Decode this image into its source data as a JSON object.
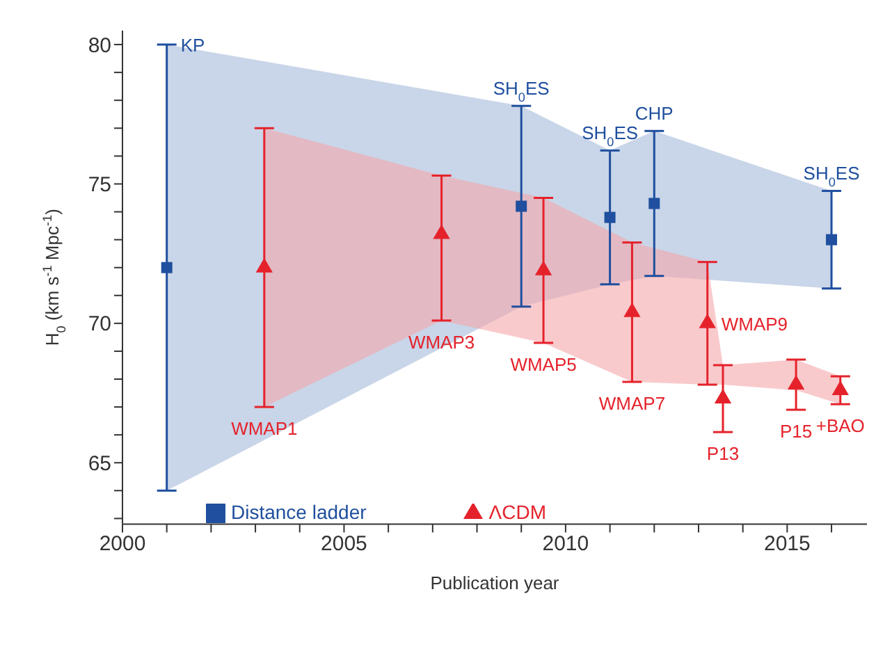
{
  "chart_data": {
    "type": "scatter",
    "xlabel": "Publication year",
    "ylabel": "H$_{0}$ (km s$^{-1}$ Mpc$^{-1}$)",
    "xlim": [
      2000,
      2016.8
    ],
    "ylim": [
      62.8,
      80.5
    ],
    "xticks": [
      2000,
      {
        "value": 2001,
        "label": null
      },
      {
        "value": 2002,
        "label": null
      },
      {
        "value": 2003,
        "label": null
      },
      {
        "value": 2004,
        "label": null
      },
      2005,
      {
        "value": 2006,
        "label": null
      },
      {
        "value": 2007,
        "label": null
      },
      {
        "value": 2008,
        "label": null
      },
      {
        "value": 2009,
        "label": null
      },
      2010,
      {
        "value": 2011,
        "label": null
      },
      {
        "value": 2012,
        "label": null
      },
      {
        "value": 2013,
        "label": null
      },
      {
        "value": 2014,
        "label": null
      },
      2015,
      {
        "value": 2016,
        "label": null
      }
    ],
    "yticks": [
      {
        "value": 63,
        "label": null
      },
      {
        "value": 64,
        "label": null
      },
      65,
      {
        "value": 66,
        "label": null
      },
      {
        "value": 67,
        "label": null
      },
      {
        "value": 68,
        "label": null
      },
      {
        "value": 69,
        "label": null
      },
      70,
      {
        "value": 71,
        "label": null
      },
      {
        "value": 72,
        "label": null
      },
      {
        "value": 73,
        "label": null
      },
      {
        "value": 74,
        "label": null
      },
      75,
      {
        "value": 76,
        "label": null
      },
      {
        "value": 77,
        "label": null
      },
      {
        "value": 78,
        "label": null
      },
      {
        "value": 79,
        "label": null
      },
      80
    ],
    "legend": "bottom left",
    "grid": false,
    "series": [
      {
        "name": "Distance ladder",
        "color": "#1f4f9e",
        "marker": "square",
        "x": [
          2001,
          2009,
          2011,
          2012,
          2016
        ],
        "values": [
          72,
          74.2,
          73.8,
          74.3,
          73.0
        ],
        "errors": [
          [
            64,
            80
          ],
          [
            70.6,
            77.8
          ],
          [
            71.4,
            76.2
          ],
          [
            71.7,
            76.9
          ],
          [
            71.25,
            74.75
          ]
        ],
        "lower": [
          64,
          70.6,
          71.4,
          71.7,
          71.25
        ],
        "upper": [
          80,
          77.8,
          76.2,
          76.9,
          74.75
        ]
      },
      {
        "name": "ΛCDM",
        "color": "#e5222b",
        "marker": "triangle",
        "x": [
          2003.2,
          2007.2,
          2009.5,
          2011.5,
          2013.2,
          2013.55,
          2015.2,
          2016.2
        ],
        "values": [
          72,
          73.2,
          71.9,
          70.4,
          70.0,
          67.3,
          67.8,
          67.6
        ],
        "errors": [
          [
            67,
            77
          ],
          [
            70.1,
            75.3
          ],
          [
            69.3,
            74.5
          ],
          [
            67.9,
            72.9
          ],
          [
            67.8,
            72.2
          ],
          [
            66.1,
            68.5
          ],
          [
            66.9,
            68.7
          ],
          [
            67.1,
            68.1
          ]
        ],
        "lower": [
          67,
          70.1,
          69.3,
          67.9,
          67.8,
          67.8,
          67.6,
          67.1
        ],
        "upper": [
          77,
          75.3,
          74.5,
          72.9,
          72.2,
          68.5,
          68.7,
          68.1
        ]
      }
    ],
    "annotations": [
      {
        "text": "KP",
        "x": 2001,
        "y": 80
      },
      {
        "text": "SH$_{0}$ES",
        "x": 2009,
        "y": 77.8
      },
      {
        "text": "SH$_{0}$ES",
        "x": 2011,
        "y": 76.2
      },
      {
        "text": "CHP",
        "x": 2012,
        "y": 76.9
      },
      {
        "text": "SH$_{0}$ES",
        "x": 2016,
        "y": 74.75
      },
      {
        "text": "WMAP1",
        "x": 2003.2,
        "y": 67
      },
      {
        "text": "WMAP3",
        "x": 2007.2,
        "y": 70.1
      },
      {
        "text": "WMAP5",
        "x": 2009.5,
        "y": 69.3
      },
      {
        "text": "WMAP7",
        "x": 2011.5,
        "y": 67.9
      },
      {
        "text": "WMAP9",
        "x": 2013.2,
        "y": 70.0
      },
      {
        "text": "P13",
        "x": 2013.55,
        "y": 66.1
      },
      {
        "text": "P15",
        "x": 2015.2,
        "y": 66.9
      },
      {
        "text": "+BAO",
        "x": 2016.2,
        "y": 67.1
      }
    ]
  }
}
